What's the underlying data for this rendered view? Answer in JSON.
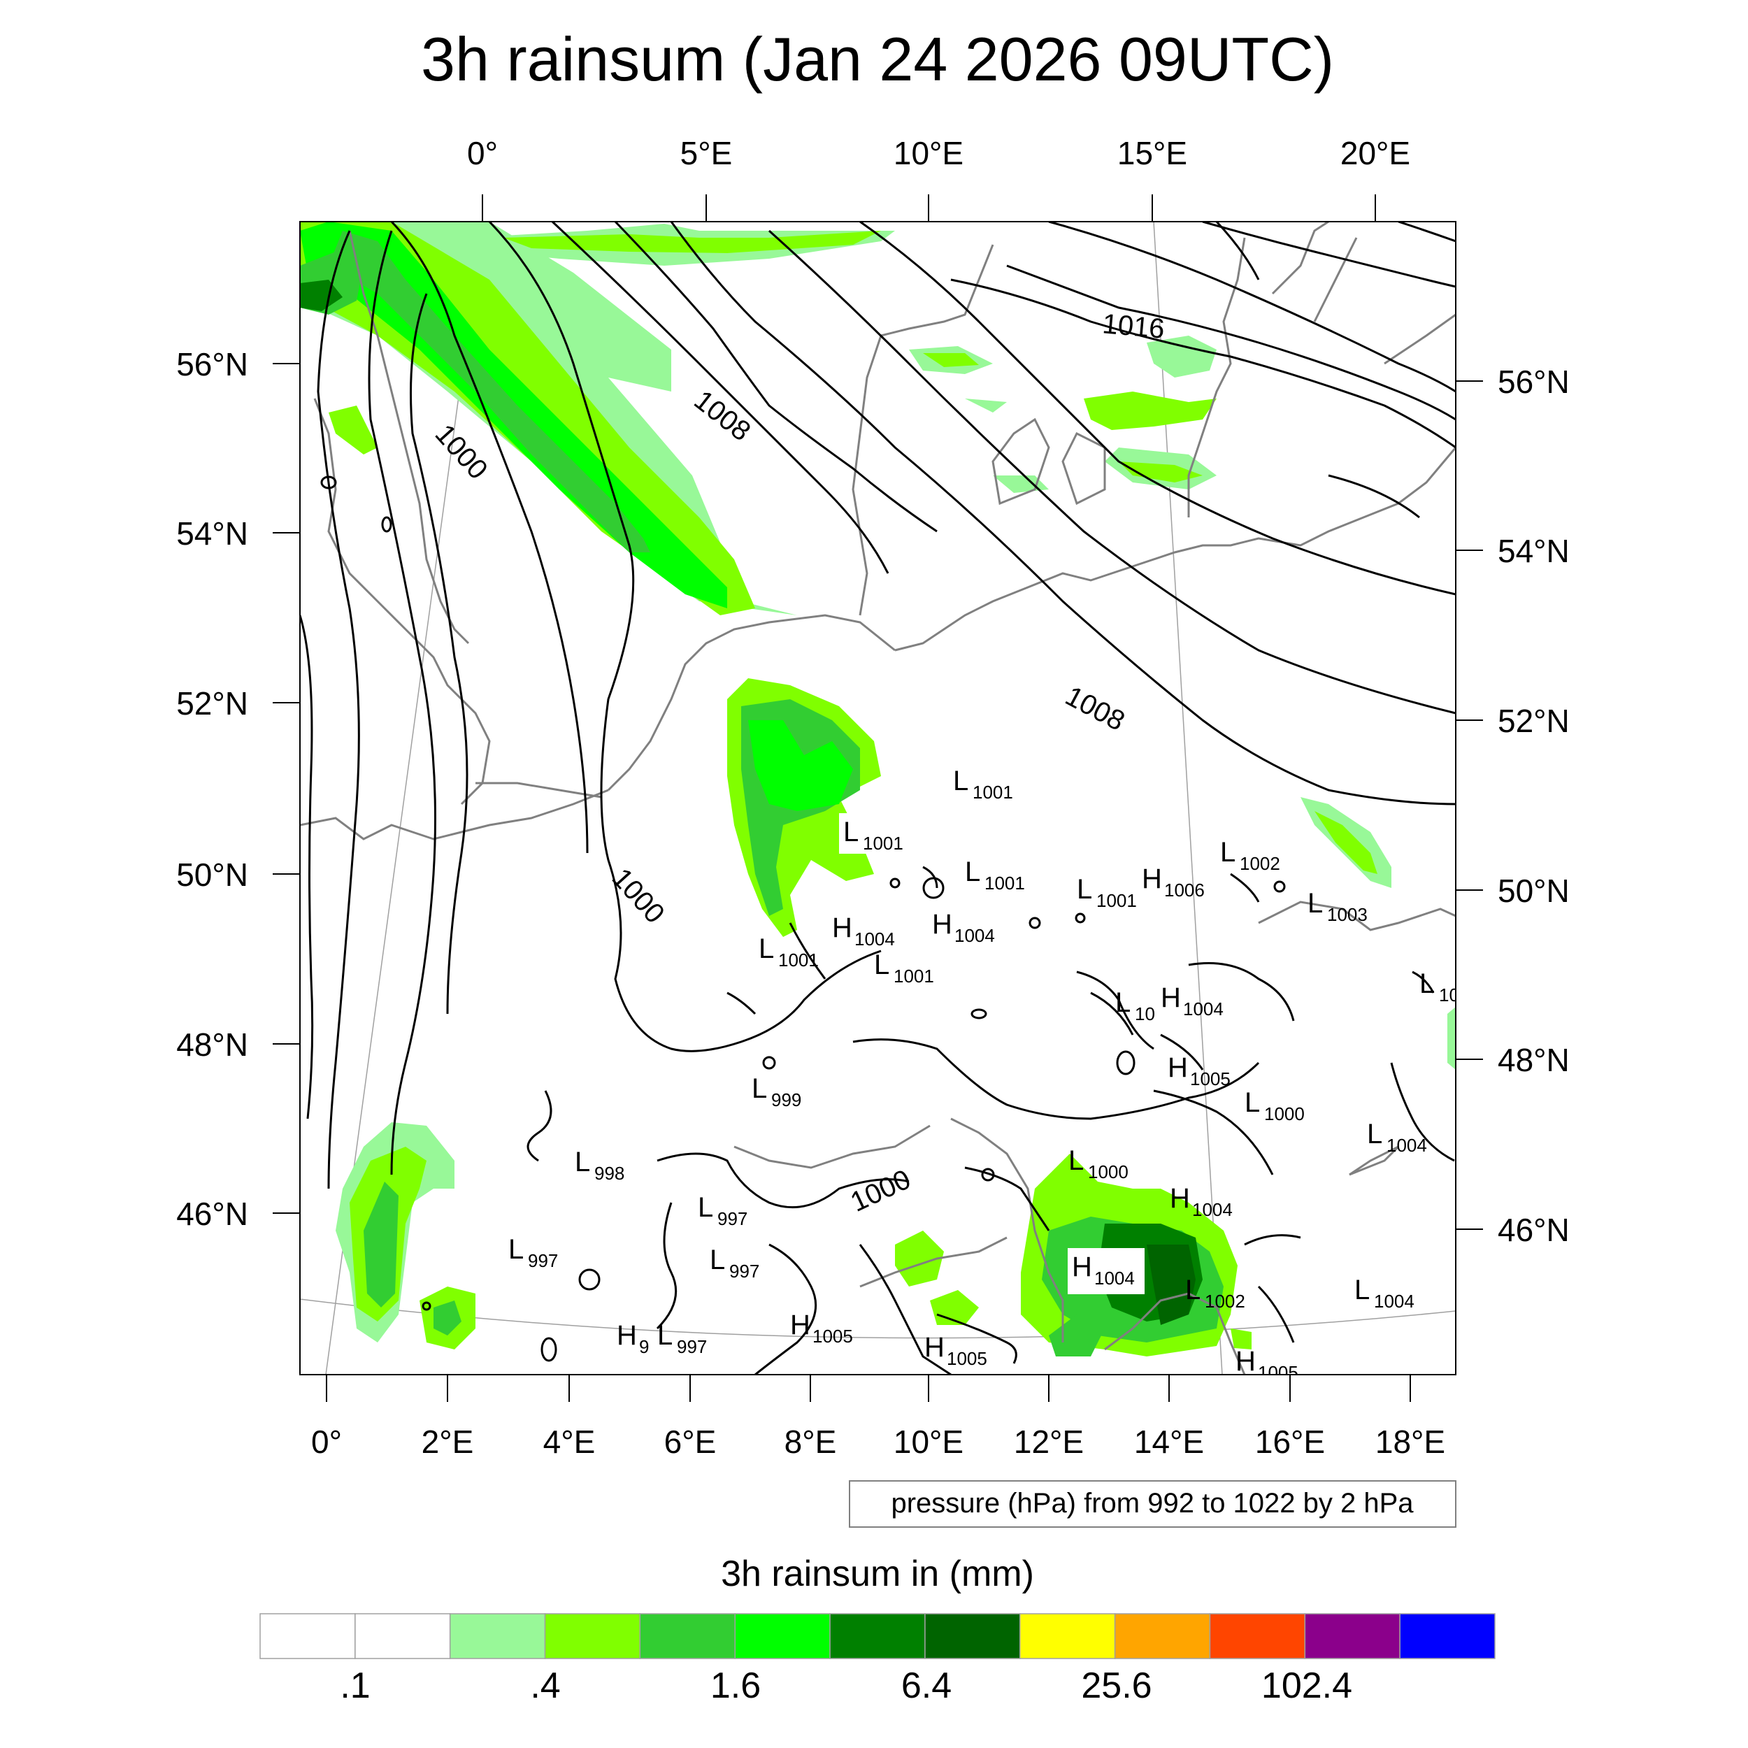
{
  "title": "3h rainsum (Jan 24 2026 09UTC)",
  "top_lon_labels": [
    "0°",
    "5°E",
    "10°E",
    "15°E",
    "20°E"
  ],
  "bottom_lon_labels": [
    "0°",
    "2°E",
    "4°E",
    "6°E",
    "8°E",
    "10°E",
    "12°E",
    "14°E",
    "16°E",
    "18°E"
  ],
  "left_lat_labels": [
    "56°N",
    "54°N",
    "52°N",
    "50°N",
    "48°N",
    "46°N"
  ],
  "right_lat_labels": [
    "56°N",
    "54°N",
    "52°N",
    "50°N",
    "48°N",
    "46°N"
  ],
  "contour_labels": [
    "1016",
    "1008",
    "1000",
    "1008",
    "1000",
    "1000"
  ],
  "pressure_centers": [
    {
      "type": "L",
      "value": "1001"
    },
    {
      "type": "L",
      "value": "1001"
    },
    {
      "type": "L",
      "value": "1001"
    },
    {
      "type": "L",
      "value": "1001"
    },
    {
      "type": "H",
      "value": "1006"
    },
    {
      "type": "L",
      "value": "1002"
    },
    {
      "type": "L",
      "value": "1003"
    },
    {
      "type": "H",
      "value": "1004"
    },
    {
      "type": "H",
      "value": "1004"
    },
    {
      "type": "L",
      "value": "1001"
    },
    {
      "type": "L",
      "value": "1001"
    },
    {
      "type": "L",
      "value": "10"
    },
    {
      "type": "H",
      "value": "1004"
    },
    {
      "type": "L",
      "value": "10"
    },
    {
      "type": "H",
      "value": "1005"
    },
    {
      "type": "L",
      "value": "1000"
    },
    {
      "type": "L",
      "value": "999"
    },
    {
      "type": "L",
      "value": "1004"
    },
    {
      "type": "L",
      "value": "998"
    },
    {
      "type": "L",
      "value": "1000"
    },
    {
      "type": "H",
      "value": "1004"
    },
    {
      "type": "L",
      "value": "997"
    },
    {
      "type": "L",
      "value": "997"
    },
    {
      "type": "L",
      "value": "997"
    },
    {
      "type": "H",
      "value": "1004"
    },
    {
      "type": "L",
      "value": "1002"
    },
    {
      "type": "L",
      "value": "1004"
    },
    {
      "type": "H",
      "value": "9"
    },
    {
      "type": "L",
      "value": "997"
    },
    {
      "type": "H",
      "value": "1005"
    },
    {
      "type": "H",
      "value": "1005"
    },
    {
      "type": "H",
      "value": "1005"
    }
  ],
  "contour_note": "pressure (hPa) from 992 to 1022 by 2 hPa",
  "colorbar": {
    "title": "3h rainsum in (mm)",
    "colors": [
      "#ffffff",
      "#ffffff",
      "#98f898",
      "#80ff00",
      "#32cd32",
      "#00ff00",
      "#008000",
      "#006400",
      "#ffff00",
      "#ffa500",
      "#ff4500",
      "#8b008b",
      "#0000ff"
    ],
    "labels": [
      ".1",
      ".4",
      "1.6",
      "6.4",
      "25.6",
      "102.4"
    ]
  },
  "colors": {
    "coast": "#808080",
    "isobar": "#000000",
    "graticule": "#a0a0a0"
  }
}
